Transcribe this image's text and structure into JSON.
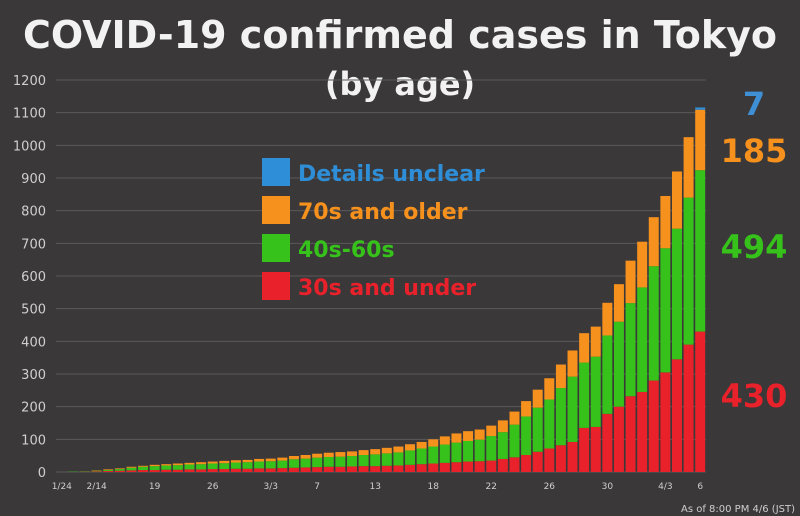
{
  "chart_data": {
    "type": "bar",
    "stacked": true,
    "title": "COVID-19 confirmed cases in Tokyo",
    "subtitle": "(by age)",
    "note": "As of 8:00 PM 4/6 (JST)",
    "ylim": [
      0,
      1200
    ],
    "yticks": [
      0,
      100,
      200,
      300,
      400,
      500,
      600,
      700,
      800,
      900,
      1000,
      1100,
      1200
    ],
    "grid": true,
    "legend_position": "center-left",
    "x_tick_labels": [
      {
        "index": 0,
        "label": "1/24"
      },
      {
        "index": 3,
        "label": "2/14"
      },
      {
        "index": 8,
        "label": "19"
      },
      {
        "index": 13,
        "label": "26"
      },
      {
        "index": 18,
        "label": "3/3"
      },
      {
        "index": 22,
        "label": "7"
      },
      {
        "index": 27,
        "label": "13"
      },
      {
        "index": 32,
        "label": "18"
      },
      {
        "index": 37,
        "label": "22"
      },
      {
        "index": 42,
        "label": "26"
      },
      {
        "index": 47,
        "label": "30"
      },
      {
        "index": 52,
        "label": "4/3"
      },
      {
        "index": 55,
        "label": "6"
      }
    ],
    "series": [
      {
        "name": "30s and under",
        "color": "#e8212b",
        "values": [
          0,
          0,
          1,
          2,
          3,
          4,
          5,
          6,
          6,
          7,
          7,
          8,
          8,
          9,
          9,
          10,
          10,
          11,
          11,
          12,
          13,
          14,
          15,
          16,
          16,
          17,
          18,
          18,
          19,
          20,
          22,
          24,
          26,
          28,
          30,
          32,
          33,
          35,
          40,
          45,
          52,
          62,
          72,
          82,
          92,
          135,
          138,
          178,
          200,
          232,
          245,
          280,
          305,
          345,
          390,
          430
        ]
      },
      {
        "name": "40s-60s",
        "color": "#36c21b",
        "values": [
          0,
          1,
          1,
          2,
          3,
          5,
          8,
          10,
          12,
          13,
          14,
          15,
          16,
          17,
          18,
          19,
          20,
          21,
          22,
          23,
          26,
          27,
          29,
          30,
          31,
          32,
          34,
          36,
          38,
          40,
          44,
          48,
          52,
          56,
          60,
          63,
          66,
          75,
          82,
          100,
          118,
          135,
          150,
          175,
          200,
          200,
          215,
          240,
          260,
          285,
          320,
          350,
          380,
          400,
          450,
          494
        ]
      },
      {
        "name": "70s and older",
        "color": "#f7911e",
        "values": [
          0,
          0,
          0,
          1,
          2,
          2,
          3,
          3,
          4,
          4,
          5,
          5,
          6,
          6,
          7,
          7,
          7,
          8,
          8,
          9,
          10,
          11,
          12,
          13,
          14,
          14,
          15,
          16,
          17,
          18,
          19,
          20,
          22,
          25,
          28,
          30,
          31,
          32,
          36,
          40,
          47,
          55,
          65,
          72,
          80,
          90,
          92,
          100,
          115,
          130,
          140,
          150,
          160,
          175,
          185,
          185
        ]
      },
      {
        "name": "Details unclear",
        "color": "#2f8ed8",
        "values": [
          0,
          0,
          0,
          0,
          0,
          0,
          0,
          0,
          0,
          0,
          0,
          0,
          0,
          0,
          0,
          0,
          0,
          0,
          0,
          0,
          0,
          0,
          0,
          0,
          0,
          0,
          0,
          0,
          0,
          0,
          0,
          0,
          0,
          0,
          0,
          0,
          0,
          0,
          0,
          0,
          0,
          0,
          0,
          0,
          0,
          0,
          0,
          0,
          0,
          0,
          0,
          0,
          0,
          0,
          0,
          7
        ]
      }
    ],
    "end_labels": [
      {
        "series": "Details unclear",
        "text": "7",
        "color": "#3e8fd4"
      },
      {
        "series": "70s and older",
        "text": "185",
        "color": "#f7911e"
      },
      {
        "series": "40s-60s",
        "text": "494",
        "color": "#36c21b"
      },
      {
        "series": "30s and under",
        "text": "430",
        "color": "#e8212b"
      }
    ]
  }
}
